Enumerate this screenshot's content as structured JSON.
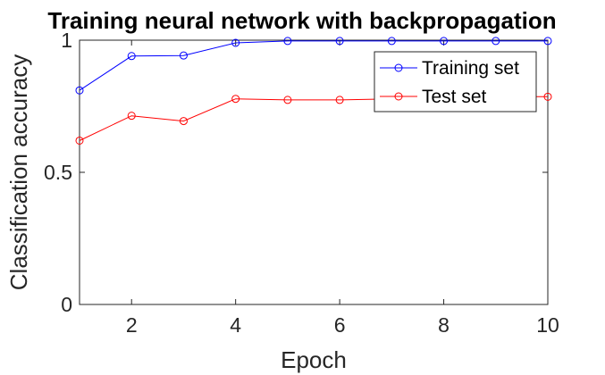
{
  "chart_data": {
    "type": "line",
    "title": "Training neural network with backpropagation",
    "xlabel": "Epoch",
    "ylabel": "Classification accuracy",
    "xlim": [
      1,
      10
    ],
    "ylim": [
      0,
      1
    ],
    "xticks": [
      "2",
      "4",
      "6",
      "8",
      "10"
    ],
    "yticks": [
      "0",
      "0.5",
      "1"
    ],
    "grid": false,
    "legend_position": "top-right",
    "x": [
      1,
      2,
      3,
      4,
      5,
      6,
      7,
      8,
      9,
      10
    ],
    "series": [
      {
        "name": "Training set",
        "color": "#0000ff",
        "marker": "circle",
        "values": [
          0.81,
          0.94,
          0.942,
          0.99,
          0.997,
          0.997,
          0.997,
          0.997,
          0.997,
          0.997
        ]
      },
      {
        "name": "Test set",
        "color": "#ff0000",
        "marker": "circle",
        "values": [
          0.62,
          0.714,
          0.694,
          0.778,
          0.774,
          0.774,
          0.778,
          0.782,
          0.786,
          0.786
        ]
      }
    ]
  }
}
